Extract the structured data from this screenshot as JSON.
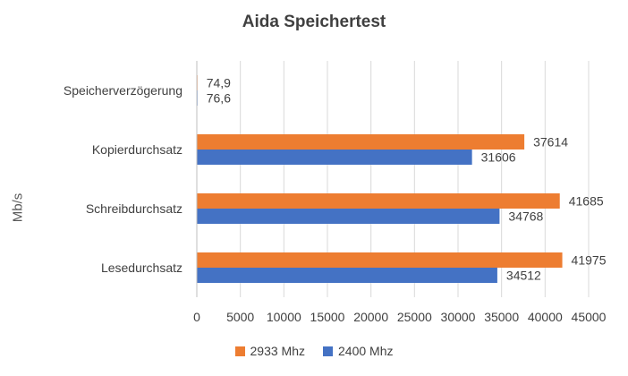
{
  "chart_data": {
    "type": "bar",
    "orientation": "horizontal",
    "title": "Aida Speichertest",
    "ylabel": "Mb/s",
    "xlabel": "",
    "categories": [
      "Speicherverzögerung",
      "Kopierdurchsatz",
      "Schreibdurchsatz",
      "Lesedurchsatz"
    ],
    "series": [
      {
        "name": "2933 Mhz",
        "color": "#ED7D31",
        "values": [
          74.9,
          37614,
          41685,
          41975
        ],
        "labels": [
          "74,9",
          "37614",
          "41685",
          "41975"
        ]
      },
      {
        "name": "2400 Mhz",
        "color": "#4472C4",
        "values": [
          76.6,
          31606,
          34768,
          34512
        ],
        "labels": [
          "76,6",
          "31606",
          "34768",
          "34512"
        ]
      }
    ],
    "xlim": [
      0,
      45000
    ],
    "xticks": [
      0,
      5000,
      10000,
      15000,
      20000,
      25000,
      30000,
      35000,
      40000,
      45000
    ],
    "grid": true,
    "legend_position": "bottom"
  }
}
